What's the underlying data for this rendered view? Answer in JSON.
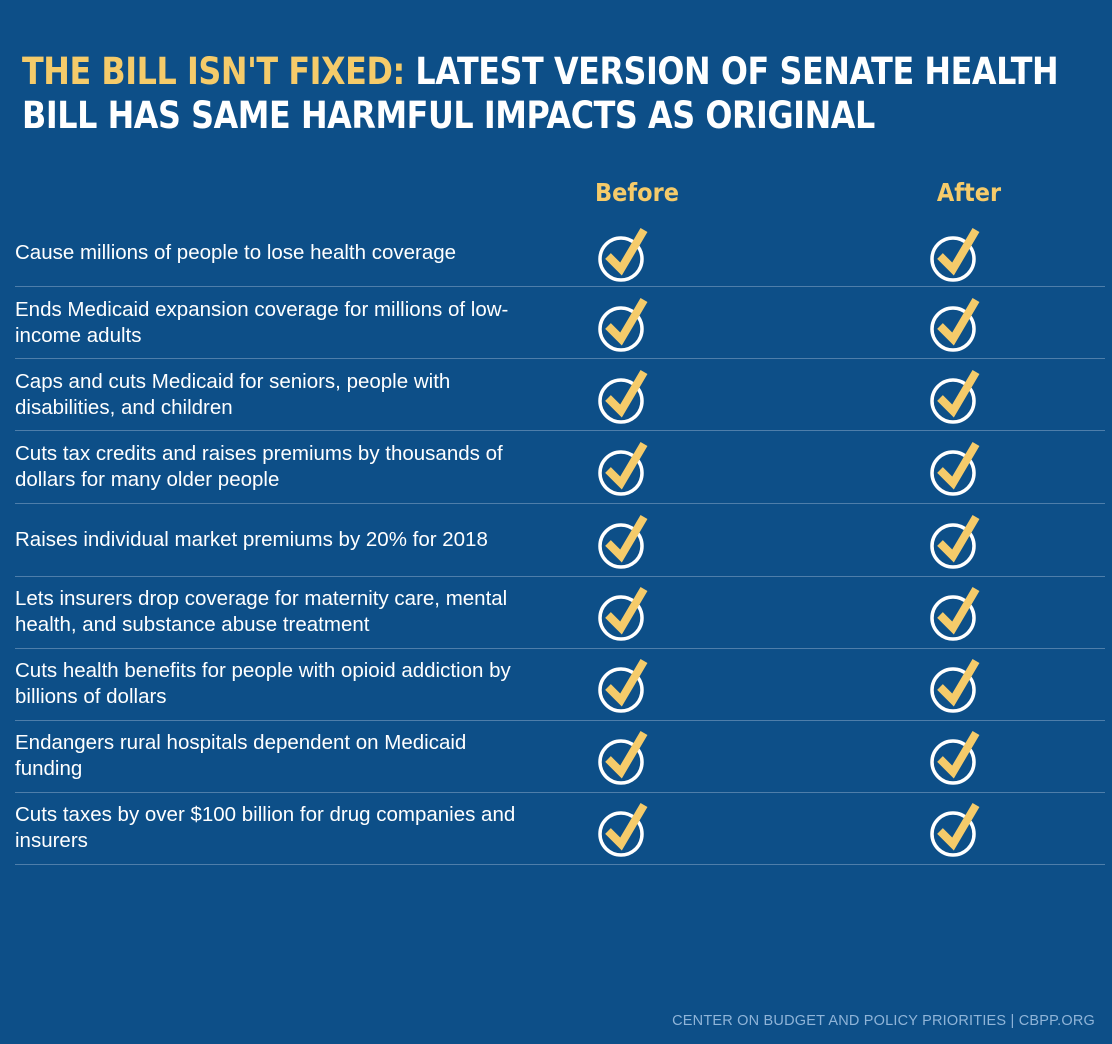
{
  "title": {
    "highlight": "THE BILL ISN'T FIXED:",
    "rest": " LATEST VERSION OF SENATE HEALTH BILL HAS SAME HARMFUL IMPACTS AS ORIGINAL"
  },
  "chart_data": {
    "type": "table",
    "title": "THE BILL ISN'T FIXED: LATEST VERSION OF SENATE HEALTH BILL HAS SAME HARMFUL IMPACTS AS ORIGINAL",
    "columns": [
      "Before",
      "After"
    ],
    "rows": [
      {
        "label": "Cause millions of people to lose health coverage",
        "before": true,
        "after": true
      },
      {
        "label": "Ends Medicaid expansion coverage for millions of low-income adults",
        "before": true,
        "after": true
      },
      {
        "label": "Caps and cuts Medicaid for seniors, people with disabilities, and children",
        "before": true,
        "after": true
      },
      {
        "label": "Cuts tax credits and raises premiums by thousands of dollars for many older people",
        "before": true,
        "after": true
      },
      {
        "label": "Raises individual market premiums by 20% for 2018",
        "before": true,
        "after": true
      },
      {
        "label": "Lets insurers drop coverage for maternity care, mental health, and substance abuse treatment",
        "before": true,
        "after": true
      },
      {
        "label": "Cuts health benefits for people with opioid addiction by billions of dollars",
        "before": true,
        "after": true
      },
      {
        "label": "Endangers rural hospitals dependent on Medicaid funding",
        "before": true,
        "after": true
      },
      {
        "label": "Cuts taxes by over $100 billion for drug companies and insurers",
        "before": true,
        "after": true
      }
    ]
  },
  "footer": "CENTER ON BUDGET AND POLICY PRIORITIES | CBPP.ORG",
  "colors": {
    "background": "#0d4f88",
    "accent": "#f5cb6a",
    "divider": "#4e7eaa",
    "footer": "#8fb4d8"
  }
}
